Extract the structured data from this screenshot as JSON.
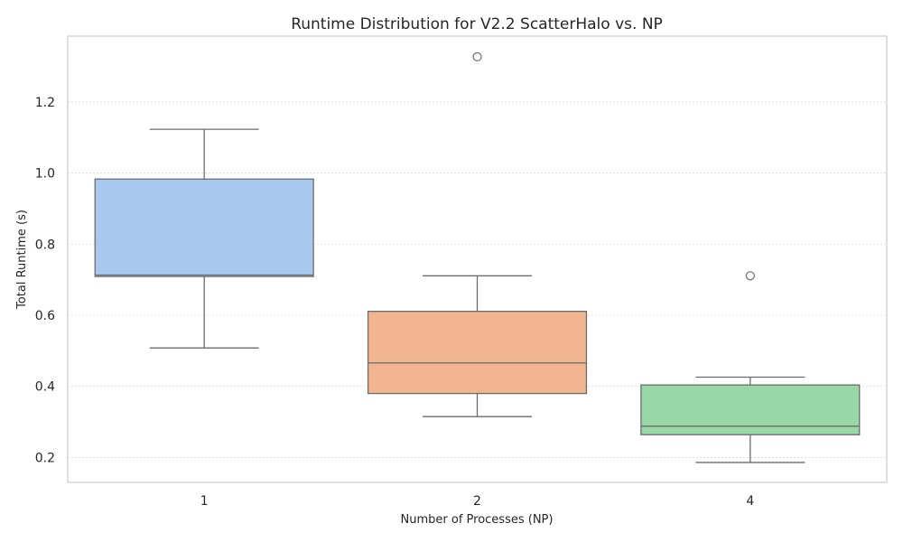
{
  "chart_data": {
    "type": "box",
    "title": "Runtime Distribution for V2.2 ScatterHalo vs. NP",
    "xlabel": "Number of Processes (NP)",
    "ylabel": "Total Runtime (s)",
    "ylim": [
      0.13,
      1.385
    ],
    "yticks": [
      "0.2",
      "0.4",
      "0.6",
      "0.8",
      "1.0",
      "1.2"
    ],
    "grid": true,
    "categories": [
      "1",
      "2",
      "4"
    ],
    "boxes": [
      {
        "category": "1",
        "color": "#a8c8ee",
        "whisker_low": 0.508,
        "q1": 0.709,
        "median": 0.713,
        "q3": 0.983,
        "whisker_high": 1.123,
        "outliers": []
      },
      {
        "category": "2",
        "color": "#f1b690",
        "whisker_low": 0.315,
        "q1": 0.38,
        "median": 0.466,
        "q3": 0.611,
        "whisker_high": 0.711,
        "outliers": [
          1.327
        ]
      },
      {
        "category": "4",
        "color": "#97d8a6",
        "whisker_low": 0.186,
        "q1": 0.264,
        "median": 0.288,
        "q3": 0.404,
        "whisker_high": 0.426,
        "outliers": [
          0.711
        ]
      }
    ]
  }
}
